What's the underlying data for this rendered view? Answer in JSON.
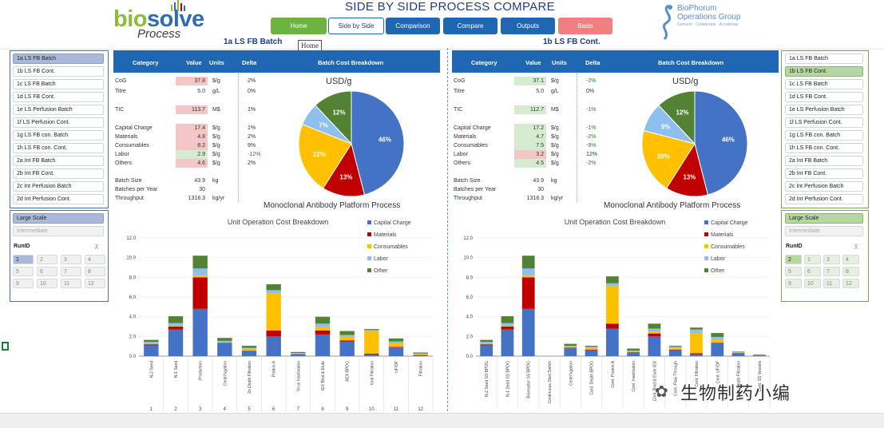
{
  "header": {
    "logo_main_a": "bio",
    "logo_main_b": "solve",
    "logo_sub": "Process",
    "title": "SIDE BY SIDE PROCESS COMPARE",
    "tooltip": "Home",
    "partner_logo": [
      "BioPhorum",
      "Operations Group",
      "Connect · Collaborate · Accelerate"
    ]
  },
  "nav": [
    {
      "label": "Home",
      "color": "#6db33f"
    },
    {
      "label": "Side by Side",
      "color": "#ffffff"
    },
    {
      "label": "Comparison",
      "color": "#1f66b3"
    },
    {
      "label": "Compare",
      "color": "#1f66b3"
    },
    {
      "label": "Outputs",
      "color": "#1f66b3"
    },
    {
      "label": "Basis",
      "color": "#f08080"
    }
  ],
  "left": {
    "title": "1a LS FB Batch",
    "processes": [
      "1a LS FB Batch",
      "1b LS FB Cont.",
      "1c LS FB Batch",
      "1d LS FB Cont.",
      "1e LS Perfusion Batch",
      "1f LS Perfusion Cont.",
      "1g LS FB con. Batch",
      "1h LS FB con. Cont.",
      "2a Int FB Batch",
      "2b Int FB Cont.",
      "2c Int Perfusion Batch",
      "2d Int Perfusion Cont."
    ],
    "scale": [
      "Large Scale",
      "Intermediate"
    ],
    "runid_label": "RunID",
    "runids": [
      "1",
      "2",
      "3",
      "4",
      "5",
      "6",
      "7",
      "8",
      "9",
      "10",
      "11",
      "12"
    ],
    "table": {
      "headers": [
        "Category",
        "Value",
        "Units",
        "Delta"
      ],
      "breakdown_header": "Batch Cost Breakdown",
      "rows": [
        {
          "label": "CoG",
          "value": "37.8",
          "unit": "$/g",
          "delta": "2%",
          "hl": "red"
        },
        {
          "label": "Titre",
          "value": "5.0",
          "unit": "g/L",
          "delta": "0%",
          "hl": ""
        },
        {
          "label": "TIC",
          "value": "113.7",
          "unit": "M$",
          "delta": "1%",
          "hl": "red"
        },
        {
          "label": "Capital Charge",
          "value": "17.4",
          "unit": "$/g",
          "delta": "1%",
          "hl": "red"
        },
        {
          "label": "Materials",
          "value": "4.8",
          "unit": "$/g",
          "delta": "2%",
          "hl": "red"
        },
        {
          "label": "Consumables",
          "value": "8.2",
          "unit": "$/g",
          "delta": "9%",
          "hl": "red"
        },
        {
          "label": "Labor",
          "value": "2.9",
          "unit": "$/g",
          "delta": "-12%",
          "hl": "green"
        },
        {
          "label": "Others",
          "value": "4.6",
          "unit": "$/g",
          "delta": "2%",
          "hl": "red"
        },
        {
          "label": "Batch Size",
          "value": "43.9",
          "unit": "kg",
          "delta": "",
          "hl": ""
        },
        {
          "label": "Batches per Year",
          "value": "30",
          "unit": "",
          "delta": "",
          "hl": ""
        },
        {
          "label": "Throughput",
          "value": "1318.3",
          "unit": "kg/yr",
          "delta": "",
          "hl": ""
        }
      ]
    },
    "pie_title": "USD/g",
    "pie_labels": [
      "46%",
      "13%",
      "22%",
      "7%",
      "12%"
    ],
    "bar_section_title": "Monoclonal Antibody Platform Process",
    "bar_title": "Unit Operation Cost Breakdown",
    "ops": [
      "N-2 Seed",
      "N-1 Seed",
      "Production",
      "Centrifugation",
      "2o Depth Filtration",
      "Protein A",
      "Virus Inactivation",
      "IEX Bind & Elute",
      "AEX BPOG",
      "Viral Filtration",
      "UF/DF",
      "Filtration"
    ],
    "op_nums": [
      "1",
      "2",
      "3",
      "4",
      "5",
      "6",
      "7",
      "8",
      "9",
      "10",
      "11",
      "12"
    ]
  },
  "right": {
    "title": "1b LS FB Cont.",
    "processes": [
      "1a LS FB Batch",
      "1b LS FB Cont.",
      "1c LS FB Batch",
      "1d LS FB Cont.",
      "1e LS Perfusion Batch",
      "1f LS Perfusion Cont.",
      "1g LS FB con. Batch",
      "1h LS FB con. Cont.",
      "2a Int FB Batch",
      "2b Int FB Cont.",
      "2c Int Perfusion Batch",
      "2d Int Perfusion Cont."
    ],
    "scale": [
      "Large Scale",
      "Intermediate"
    ],
    "runid_label": "RunID",
    "runids": [
      "2",
      "1",
      "3",
      "4",
      "5",
      "6",
      "7",
      "8",
      "9",
      "10",
      "11",
      "12"
    ],
    "table": {
      "headers": [
        "Category",
        "Value",
        "Units",
        "Delta"
      ],
      "breakdown_header": "Batch Cost Breakdown",
      "rows": [
        {
          "label": "CoG",
          "value": "37.1",
          "unit": "$/g",
          "delta": "-2%",
          "hl": "green"
        },
        {
          "label": "Titre",
          "value": "5.0",
          "unit": "g/L",
          "delta": "0%",
          "hl": ""
        },
        {
          "label": "TIC",
          "value": "112.7",
          "unit": "M$",
          "delta": "-1%",
          "hl": "green"
        },
        {
          "label": "Capital Charge",
          "value": "17.2",
          "unit": "$/g",
          "delta": "-1%",
          "hl": "green"
        },
        {
          "label": "Materials",
          "value": "4.7",
          "unit": "$/g",
          "delta": "-2%",
          "hl": "green"
        },
        {
          "label": "Consumables",
          "value": "7.5",
          "unit": "$/g",
          "delta": "-9%",
          "hl": "green"
        },
        {
          "label": "Labor",
          "value": "3.2",
          "unit": "$/g",
          "delta": "12%",
          "hl": "red"
        },
        {
          "label": "Others",
          "value": "4.5",
          "unit": "$/g",
          "delta": "-2%",
          "hl": "green"
        },
        {
          "label": "Batch Size",
          "value": "43.9",
          "unit": "kg",
          "delta": "",
          "hl": ""
        },
        {
          "label": "Batches per Year",
          "value": "30",
          "unit": "",
          "delta": "",
          "hl": ""
        },
        {
          "label": "Throughput",
          "value": "1318.3",
          "unit": "kg/yr",
          "delta": "",
          "hl": ""
        }
      ]
    },
    "pie_title": "USD/g",
    "pie_labels": [
      "46%",
      "13%",
      "20%",
      "9%",
      "12%"
    ],
    "bar_section_title": "Monoclonal Antibody Platform Process",
    "bar_title": "Unit Operation Cost Breakdown",
    "ops": [
      "N-2 Seed SS BPOG",
      "N-1 Seed SS BPOG",
      "Bioreactor SS BPOG",
      "Continuous Start Switch",
      "Centrifugation",
      "Cont. Depth BPOG",
      "Cont. Protein A",
      "Cont. Inactivation",
      "Cont. Bind & Elute IEX",
      "Cont. Flow Through",
      "Cont. Filtration",
      "Cont. UF/DF",
      "Cont. Depth Filtration",
      "Cont. SS Vessels"
    ]
  },
  "watermark": "生物制药小编",
  "colors": {
    "capital": "#4472c4",
    "materials": "#c00000",
    "consumables": "#ffc000",
    "labor": "#8fbfee",
    "other": "#548235"
  },
  "chart_data": [
    {
      "type": "pie",
      "title": "USD/g",
      "categories": [
        "Capital Charge",
        "Materials",
        "Consumables",
        "Labor",
        "Other"
      ],
      "values": [
        46,
        13,
        22,
        7,
        12
      ]
    },
    {
      "type": "bar",
      "title": "Unit Operation Cost Breakdown",
      "categories": [
        "N-2 Seed",
        "N-1 Seed",
        "Production",
        "Centrifugation",
        "2o Depth Filtration",
        "Protein A",
        "Virus Inactivation",
        "IEX Bind & Elute",
        "AEX BPOG",
        "Viral Filtration",
        "UF/DF",
        "Filtration"
      ],
      "ylim": [
        0,
        12
      ],
      "yticks": [
        "0.0",
        "2.0",
        "4.0",
        "6.0",
        "8.0",
        "10.0",
        "12.0"
      ],
      "legend": "top-right",
      "series": [
        {
          "name": "Capital Charge",
          "values": [
            1.1,
            2.7,
            4.8,
            1.3,
            0.5,
            2.0,
            0.2,
            2.2,
            1.5,
            0.15,
            0.9,
            0.1
          ]
        },
        {
          "name": "Materials",
          "values": [
            0.1,
            0.3,
            3.2,
            0.05,
            0.05,
            0.6,
            0.02,
            0.4,
            0.1,
            0.1,
            0.05,
            0.02
          ]
        },
        {
          "name": "Consumables",
          "values": [
            0.05,
            0.05,
            0.2,
            0.05,
            0.2,
            3.8,
            0.05,
            0.4,
            0.35,
            2.3,
            0.35,
            0.1
          ]
        },
        {
          "name": "Labor",
          "values": [
            0.2,
            0.3,
            0.7,
            0.15,
            0.1,
            0.3,
            0.05,
            0.3,
            0.2,
            0.1,
            0.2,
            0.05
          ]
        },
        {
          "name": "Other",
          "values": [
            0.2,
            0.7,
            1.3,
            0.3,
            0.2,
            0.6,
            0.1,
            0.7,
            0.4,
            0.1,
            0.3,
            0.1
          ]
        }
      ]
    },
    {
      "type": "pie",
      "title": "USD/g",
      "categories": [
        "Capital Charge",
        "Materials",
        "Consumables",
        "Labor",
        "Other"
      ],
      "values": [
        46,
        13,
        20,
        9,
        12
      ]
    },
    {
      "type": "bar",
      "title": "Unit Operation Cost Breakdown",
      "categories": [
        "N-2 Seed SS BPOG",
        "N-1 Seed SS BPOG",
        "Bioreactor SS BPOG",
        "Continuous Start Switch",
        "Centrifugation",
        "Cont. Depth BPOG",
        "Cont. Protein A",
        "Cont. Inactivation",
        "Cont. Bind & Elute IEX",
        "Cont. Flow Through",
        "Cont. Filtration",
        "Cont. UF/DF",
        "Cont. Depth Filtration",
        "Cont. SS Vessels"
      ],
      "ylim": [
        0,
        12
      ],
      "yticks": [
        "0.0",
        "2.0",
        "4.0",
        "6.0",
        "8.0",
        "10.0",
        "12.0"
      ],
      "legend": "top-right",
      "series": [
        {
          "name": "Capital Charge",
          "values": [
            1.1,
            2.7,
            4.8,
            0,
            0.8,
            0.6,
            2.8,
            0.4,
            2.0,
            0.6,
            0.2,
            1.3,
            0.3,
            0.1
          ]
        },
        {
          "name": "Materials",
          "values": [
            0.1,
            0.3,
            3.2,
            0,
            0.05,
            0.05,
            0.5,
            0.02,
            0.3,
            0.05,
            0.1,
            0.05,
            0.02,
            0.02
          ]
        },
        {
          "name": "Consumables",
          "values": [
            0.05,
            0.05,
            0.2,
            0,
            0.1,
            0.2,
            3.8,
            0.05,
            0.2,
            0.2,
            2.0,
            0.3,
            0.05,
            0.02
          ]
        },
        {
          "name": "Labor",
          "values": [
            0.2,
            0.3,
            0.7,
            0,
            0.1,
            0.1,
            0.3,
            0.1,
            0.3,
            0.1,
            0.4,
            0.3,
            0.05,
            0.02
          ]
        },
        {
          "name": "Other",
          "values": [
            0.2,
            0.7,
            1.3,
            0,
            0.2,
            0.1,
            0.7,
            0.2,
            0.5,
            0.1,
            0.2,
            0.4,
            0.05,
            0.02
          ]
        }
      ]
    }
  ]
}
